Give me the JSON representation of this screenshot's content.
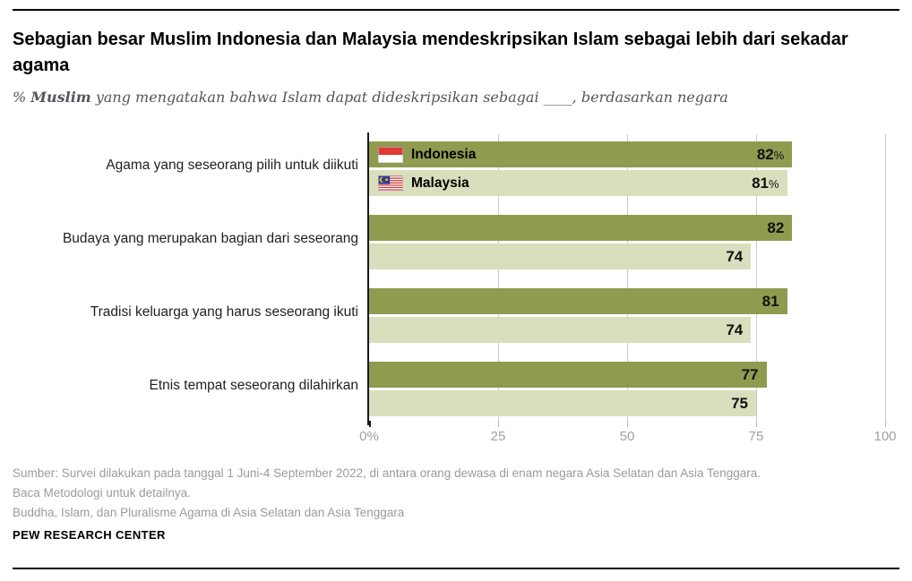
{
  "page": {
    "title": "Sebagian besar Muslim Indonesia dan Malaysia mendeskripsikan Islam sebagai lebih dari sekadar agama",
    "subtitle_prefix": "% ",
    "subtitle_bold": "Muslim",
    "subtitle_rest": " yang mengatakan bahwa Islam dapat dideskripsikan sebagai ____, berdasarkan negara",
    "source_lines": {
      "line1": "Sumber: Survei dilakukan pada tanggal 1 Juni-4 September 2022, di antara orang dewasa di enam negara Asia Selatan dan Asia Tenggara.",
      "line2": "Baca Metodologi untuk detailnya."
    },
    "report_title": "Buddha, Islam, dan Pluralisme Agama di Asia Selatan dan Asia Tenggara",
    "brand": "PEW RESEARCH CENTER"
  },
  "chart_data": {
    "type": "bar",
    "orientation": "horizontal",
    "title": "Sebagian besar Muslim Indonesia dan Malaysia mendeskripsikan Islam sebagai lebih dari sekadar agama",
    "subtitle": "% Muslim yang mengatakan bahwa Islam dapat dideskripsikan sebagai ____, berdasarkan negara",
    "categories": [
      "Agama yang seseorang pilih untuk diikuti",
      "Budaya yang merupakan bagian dari seseorang",
      "Tradisi keluarga yang harus seseorang ikuti",
      "Etnis tempat seseorang dilahirkan"
    ],
    "series": [
      {
        "name": "Indonesia",
        "flag_icon": "indonesia-flag-icon",
        "color": "#8F9B4F",
        "values": [
          82,
          82,
          81,
          77
        ],
        "labels": [
          "82%",
          "82",
          "81",
          "77"
        ]
      },
      {
        "name": "Malaysia",
        "flag_icon": "malaysia-flag-icon",
        "color": "#D9DFBC",
        "values": [
          81,
          74,
          74,
          75
        ],
        "labels": [
          "81%",
          "74",
          "74",
          "75"
        ]
      }
    ],
    "xlim": [
      0,
      100
    ],
    "xticks": [
      "0%",
      "25",
      "50",
      "75",
      "100"
    ],
    "xtick_values": [
      0,
      25,
      50,
      75,
      100
    ],
    "grid": true,
    "legend_position": "inside-first-group-bars",
    "colors": {
      "grid": "#cccccc",
      "zero_axis": "#1a1a1a",
      "axis_text": "#a0a0a0",
      "value_text": "#111111"
    }
  }
}
